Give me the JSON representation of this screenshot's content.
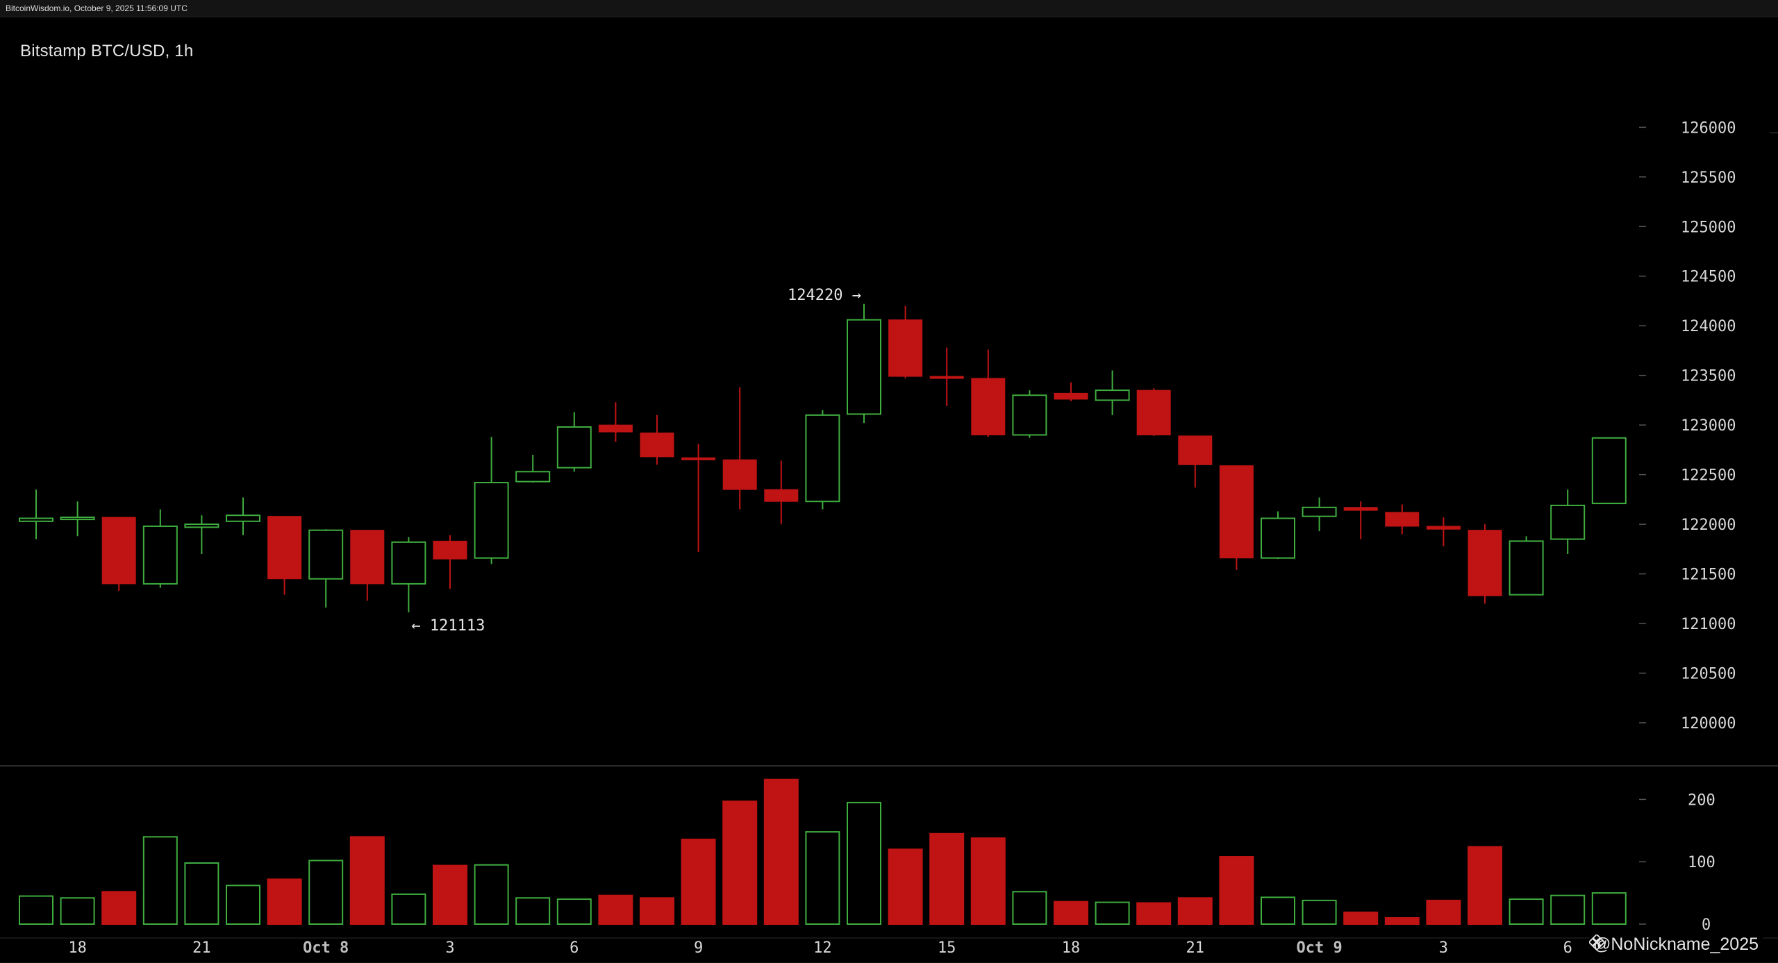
{
  "header": {
    "text": "BitcoinWisdom.io, October 9, 2025 11:56:09 UTC"
  },
  "chart_title": "Bitstamp BTC/USD, 1h",
  "watermark": {
    "text": "@NoNickname_2025",
    "icon": "binance-square-icon"
  },
  "colors": {
    "up": "#3fae3f",
    "down": "#c01414",
    "background": "#000000",
    "text": "#d8d8d8"
  },
  "chart_data": [
    {
      "type": "candlestick",
      "title": "Bitstamp BTC/USD, 1h",
      "x": [
        "17",
        "18",
        "19",
        "20",
        "21",
        "22",
        "23",
        "Oct 8",
        "1",
        "2",
        "3",
        "4",
        "5",
        "6",
        "7",
        "8",
        "9",
        "10",
        "11",
        "12",
        "13",
        "14",
        "15",
        "16",
        "17",
        "18",
        "19",
        "20",
        "21",
        "22",
        "23",
        "Oct 9",
        "1",
        "2",
        "3",
        "4",
        "5",
        "6",
        "7"
      ],
      "x_tick_labels": [
        "18",
        "21",
        "Oct 8",
        "3",
        "6",
        "9",
        "12",
        "15",
        "18",
        "21",
        "Oct 9",
        "3",
        "6"
      ],
      "ohlc": [
        {
          "o": 122030,
          "h": 122350,
          "l": 121850,
          "c": 122060
        },
        {
          "o": 122060,
          "h": 122230,
          "l": 121880,
          "c": 122070
        },
        {
          "o": 122070,
          "h": 122070,
          "l": 121330,
          "c": 121400
        },
        {
          "o": 121400,
          "h": 122150,
          "l": 121360,
          "c": 121980
        },
        {
          "o": 121970,
          "h": 122090,
          "l": 121700,
          "c": 122000
        },
        {
          "o": 122030,
          "h": 122270,
          "l": 121890,
          "c": 122090
        },
        {
          "o": 122080,
          "h": 122080,
          "l": 121290,
          "c": 121450
        },
        {
          "o": 121450,
          "h": 121950,
          "l": 121160,
          "c": 121940
        },
        {
          "o": 121940,
          "h": 121940,
          "l": 121230,
          "c": 121400
        },
        {
          "o": 121400,
          "h": 121870,
          "l": 121113,
          "c": 121820
        },
        {
          "o": 121830,
          "h": 121890,
          "l": 121350,
          "c": 121650
        },
        {
          "o": 121660,
          "h": 122880,
          "l": 121600,
          "c": 122420
        },
        {
          "o": 122430,
          "h": 122700,
          "l": 122420,
          "c": 122530
        },
        {
          "o": 122570,
          "h": 123130,
          "l": 122530,
          "c": 122980
        },
        {
          "o": 123000,
          "h": 123230,
          "l": 122830,
          "c": 122930
        },
        {
          "o": 122920,
          "h": 123100,
          "l": 122600,
          "c": 122680
        },
        {
          "o": 122670,
          "h": 122810,
          "l": 121720,
          "c": 122650
        },
        {
          "o": 122650,
          "h": 123380,
          "l": 122150,
          "c": 122350
        },
        {
          "o": 122350,
          "h": 122640,
          "l": 122000,
          "c": 122230
        },
        {
          "o": 122230,
          "h": 123150,
          "l": 122150,
          "c": 123100
        },
        {
          "o": 123110,
          "h": 124220,
          "l": 123020,
          "c": 124060
        },
        {
          "o": 124060,
          "h": 124200,
          "l": 123470,
          "c": 123490
        },
        {
          "o": 123490,
          "h": 123780,
          "l": 123190,
          "c": 123480
        },
        {
          "o": 123470,
          "h": 123760,
          "l": 122880,
          "c": 122900
        },
        {
          "o": 122900,
          "h": 123350,
          "l": 122870,
          "c": 123300
        },
        {
          "o": 123320,
          "h": 123430,
          "l": 123240,
          "c": 123260
        },
        {
          "o": 123250,
          "h": 123550,
          "l": 123100,
          "c": 123350
        },
        {
          "o": 123350,
          "h": 123370,
          "l": 122890,
          "c": 122900
        },
        {
          "o": 122890,
          "h": 122890,
          "l": 122370,
          "c": 122600
        },
        {
          "o": 122590,
          "h": 122590,
          "l": 121540,
          "c": 121660
        },
        {
          "o": 121660,
          "h": 122130,
          "l": 121650,
          "c": 122060
        },
        {
          "o": 122080,
          "h": 122270,
          "l": 121930,
          "c": 122170
        },
        {
          "o": 122170,
          "h": 122230,
          "l": 121850,
          "c": 122140
        },
        {
          "o": 122120,
          "h": 122200,
          "l": 121900,
          "c": 121980
        },
        {
          "o": 121980,
          "h": 122070,
          "l": 121780,
          "c": 121950
        },
        {
          "o": 121940,
          "h": 122000,
          "l": 121200,
          "c": 121280
        },
        {
          "o": 121290,
          "h": 121880,
          "l": 121290,
          "c": 121830
        },
        {
          "o": 121850,
          "h": 122350,
          "l": 121700,
          "c": 122190
        },
        {
          "o": 122210,
          "h": 122870,
          "l": 122210,
          "c": 122870
        }
      ],
      "y_ticks": [
        120000,
        120500,
        121000,
        121500,
        122000,
        122500,
        123000,
        123500,
        124000,
        124500,
        125000,
        125500,
        126000
      ],
      "ylim": [
        119650,
        126450
      ],
      "annotations": [
        {
          "text": "124220 →",
          "index": 20,
          "value": 124220
        },
        {
          "text": "← 121113",
          "index": 9,
          "value": 121113
        }
      ],
      "grid": false
    },
    {
      "type": "bar",
      "title": "",
      "volumes": [
        45,
        42,
        52,
        140,
        98,
        62,
        72,
        102,
        140,
        48,
        94,
        95,
        42,
        40,
        46,
        42,
        136,
        197,
        232,
        148,
        195,
        120,
        145,
        138,
        52,
        36,
        35,
        34,
        42,
        108,
        43,
        38,
        19,
        10,
        38,
        124,
        40,
        46,
        50
      ],
      "y_ticks": [
        0,
        100,
        200
      ],
      "ylim": [
        0,
        235
      ]
    }
  ]
}
